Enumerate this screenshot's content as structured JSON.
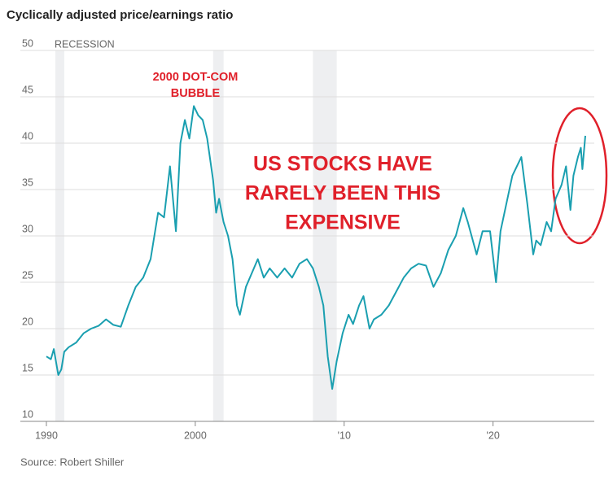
{
  "chart_data": {
    "type": "line",
    "title": "Cyclically adjusted price/earnings ratio",
    "source": "Source: Robert Shiller",
    "recession_label": "RECESSION",
    "recessions": [
      [
        1990.6,
        1991.2
      ],
      [
        2001.2,
        2001.9
      ],
      [
        2007.9,
        2009.5
      ]
    ],
    "annotations": [
      {
        "lines": [
          "2000 DOT-COM",
          "BUBBLE"
        ],
        "color": "#e0202a"
      },
      {
        "lines": [
          "US STOCKS HAVE",
          "RARELY BEEN THIS",
          "EXPENSIVE"
        ],
        "color": "#e0202a"
      }
    ],
    "xlim": [
      1988.25,
      2026.8
    ],
    "ylim": [
      10,
      50
    ],
    "xticks": [
      1990,
      2000,
      {
        "value": 2010,
        "label": "'10"
      },
      {
        "value": 2020,
        "label": "'20"
      }
    ],
    "yticks": [
      10,
      15,
      20,
      25,
      30,
      35,
      40,
      45,
      50
    ],
    "grid": true,
    "series": [
      {
        "color": "#1a9fb0",
        "x": [
          1990.0,
          1990.3,
          1990.5,
          1990.8,
          1991.0,
          1991.2,
          1991.5,
          1992.0,
          1992.5,
          1993.0,
          1993.5,
          1994.0,
          1994.5,
          1995.0,
          1995.5,
          1996.0,
          1996.5,
          1997.0,
          1997.5,
          1997.9,
          1998.3,
          1998.7,
          1999.0,
          1999.3,
          1999.6,
          1999.9,
          2000.2,
          2000.5,
          2000.8,
          2001.2,
          2001.4,
          2001.6,
          2001.9,
          2002.2,
          2002.5,
          2002.8,
          2003.0,
          2003.4,
          2003.8,
          2004.2,
          2004.6,
          2005.0,
          2005.5,
          2006.0,
          2006.5,
          2007.0,
          2007.5,
          2007.9,
          2008.3,
          2008.6,
          2008.9,
          2009.2,
          2009.5,
          2009.9,
          2010.3,
          2010.6,
          2011.0,
          2011.3,
          2011.7,
          2012.0,
          2012.5,
          2013.0,
          2013.5,
          2014.0,
          2014.5,
          2015.0,
          2015.5,
          2016.0,
          2016.5,
          2017.0,
          2017.5,
          2018.0,
          2018.3,
          2018.9,
          2019.3,
          2019.8,
          2020.2,
          2020.5,
          2020.9,
          2021.3,
          2021.9,
          2022.3,
          2022.7,
          2022.9,
          2023.2,
          2023.6,
          2023.9,
          2024.2,
          2024.6,
          2024.9,
          2025.2,
          2025.4,
          2025.7,
          2025.9,
          2026.0,
          2026.2
        ],
        "values": [
          17.0,
          16.7,
          17.8,
          15.0,
          15.6,
          17.5,
          18.0,
          18.5,
          19.5,
          20.0,
          20.3,
          21.0,
          20.4,
          20.2,
          22.5,
          24.5,
          25.5,
          27.5,
          32.5,
          32.0,
          37.5,
          30.5,
          40.0,
          42.5,
          40.5,
          44.0,
          43.0,
          42.5,
          40.5,
          36.0,
          32.5,
          34.0,
          31.5,
          30.0,
          27.5,
          22.5,
          21.5,
          24.5,
          26.0,
          27.5,
          25.5,
          26.5,
          25.5,
          26.5,
          25.5,
          27.0,
          27.5,
          26.5,
          24.5,
          22.5,
          17.0,
          13.5,
          16.5,
          19.5,
          21.5,
          20.5,
          22.5,
          23.5,
          20.0,
          21.0,
          21.5,
          22.5,
          24.0,
          25.5,
          26.5,
          27.0,
          26.8,
          24.5,
          26.0,
          28.5,
          30.0,
          33.0,
          31.5,
          28.0,
          30.5,
          30.5,
          25.0,
          30.5,
          33.5,
          36.5,
          38.5,
          33.5,
          28.0,
          29.5,
          29.0,
          31.5,
          30.5,
          34.0,
          35.5,
          37.5,
          32.8,
          36.5,
          38.5,
          39.5,
          37.2,
          40.8
        ]
      }
    ]
  }
}
